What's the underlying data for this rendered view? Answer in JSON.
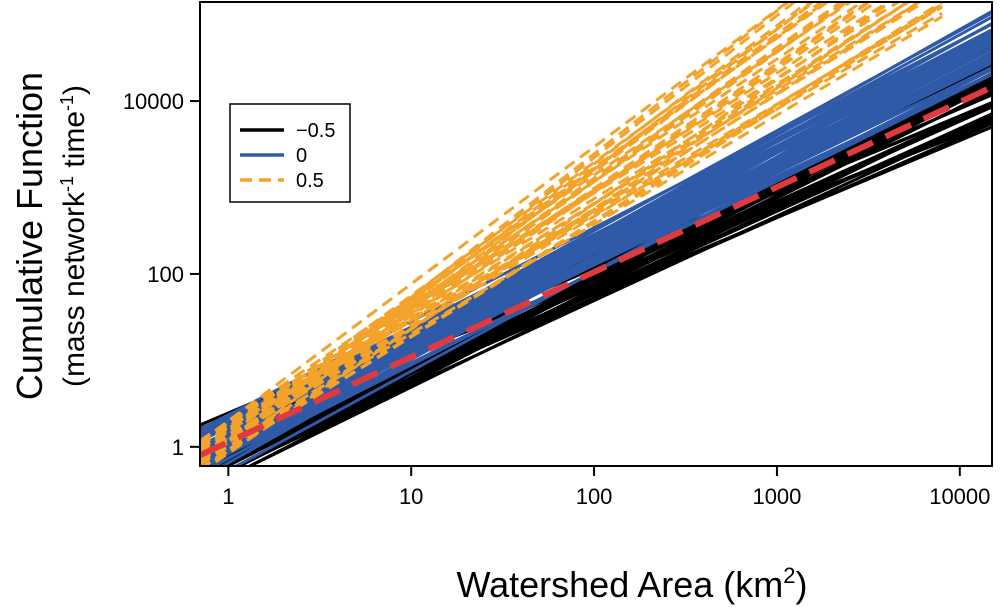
{
  "chart_data": {
    "type": "line",
    "xlabel": "Watershed Area (km",
    "xlabel_sup": "2",
    "xlabel_tail": ")",
    "ylabel_line1": "Cumulative Function",
    "ylabel_line2_a": "(mass network",
    "ylabel_line2_sup1": "-1",
    "ylabel_line2_b": " time",
    "ylabel_line2_sup2": "-1",
    "ylabel_line2_c": ")",
    "x_scale": "log",
    "y_scale": "log",
    "xlim": [
      0.7,
      15000
    ],
    "ylim": [
      0.6,
      140000
    ],
    "x_ticks": [
      1,
      10,
      100,
      1000,
      10000
    ],
    "x_tick_labels": [
      "1",
      "10",
      "100",
      "1000",
      "10000"
    ],
    "y_ticks": [
      1,
      100,
      10000
    ],
    "y_tick_labels": [
      "1",
      "100",
      "10000"
    ],
    "grid": false,
    "legend_position": "upper-left",
    "colors": {
      "neg": "#000000",
      "zero": "#2f5aa8",
      "pos": "#f4a32a",
      "mean": "#e03a3e"
    },
    "series": [
      {
        "name": "−0.5",
        "color": "#000000",
        "style": "solid",
        "ensemble": {
          "x_range": [
            0.7,
            15000
          ],
          "count": 34,
          "y_at_x0_7_range": [
            0.3,
            1.8
          ],
          "y_at_x15000_range": [
            4000,
            30000
          ]
        }
      },
      {
        "name": "0",
        "color": "#2f5aa8",
        "style": "solid",
        "ensemble": {
          "x_range": [
            0.7,
            15000
          ],
          "count": 40,
          "y_at_x0_7_range": [
            0.35,
            1.6
          ],
          "y_at_x15000_range": [
            20000,
            110000
          ]
        }
      },
      {
        "name": "0.5",
        "color": "#f4a32a",
        "style": "dashed",
        "ensemble": {
          "x_range": [
            0.7,
            8000
          ],
          "count": 34,
          "y_at_x0_7_range": [
            0.5,
            1.2
          ],
          "y_at_x1000_range": [
            6000,
            140000
          ]
        }
      },
      {
        "name": "",
        "color": "#e03a3e",
        "style": "long-dash",
        "x": [
          0.7,
          15000
        ],
        "y": [
          0.8,
          14500
        ]
      }
    ]
  }
}
